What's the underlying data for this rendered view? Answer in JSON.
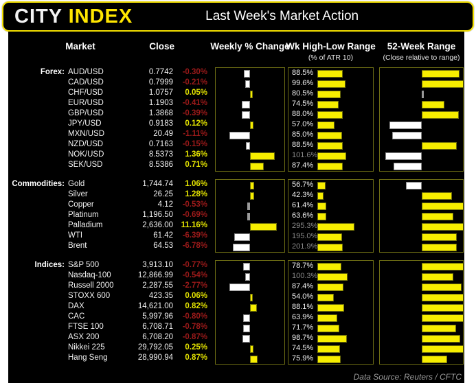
{
  "header": {
    "logo_city": "CITY",
    "logo_index": "INDEX",
    "title": "Last Week's Market Action"
  },
  "columns": {
    "market": "Market",
    "close": "Close",
    "weekly": "Weekly % Change",
    "hilow": "Wk High-Low Range",
    "hilow_sub": "(% of ATR 10)",
    "range52": "52-Week Range",
    "range52_sub": "(Close relative to range)"
  },
  "footer": {
    "source": "Data Source: Reuters / CFTC"
  },
  "colors": {
    "accent_yellow": "#ffe600",
    "positive_text": "#e6e600",
    "negative_text": "#9e1a1a",
    "over100_text": "#8a8a8a",
    "bar_yellow": "#f7ee00",
    "bar_white": "#ffffff",
    "panel_border": "#6d6d14",
    "tiny_bar_gray": "#9a9a9a"
  },
  "chart_data": {
    "type": "bar",
    "title": "Last Week's Market Action",
    "notes": "Three linked bar charts per row: weekly % change (diverging from 0, white=down yellow=up), week high-low range as % of ATR10 (yellow bars, labels >100% in gray), and close position within 52-week range (diverging from range midpoint, pos52 is -1..1 fraction).",
    "sections": [
      {
        "id": "forex",
        "name": "Forex:",
        "wk_axis": 2,
        "hl_axis": 200,
        "rows": [
          {
            "m": "AUD/USD",
            "close": "0.7742",
            "wk": -0.3,
            "wk_label": "-0.30%",
            "hl": 88.5,
            "hl_label": "88.5%",
            "pos52": 0.9
          },
          {
            "m": "CAD/USD",
            "close": "0.7999",
            "wk": -0.21,
            "wk_label": "-0.21%",
            "hl": 99.6,
            "hl_label": "99.6%",
            "pos52": 1.0
          },
          {
            "m": "CHF/USD",
            "close": "1.0757",
            "wk": 0.05,
            "wk_label": "0.05%",
            "hl": 80.5,
            "hl_label": "80.5%",
            "pos52": 0.02
          },
          {
            "m": "EUR/USD",
            "close": "1.1903",
            "wk": -0.41,
            "wk_label": "-0.41%",
            "hl": 74.5,
            "hl_label": "74.5%",
            "pos52": 0.53
          },
          {
            "m": "GBP/USD",
            "close": "1.3868",
            "wk": -0.39,
            "wk_label": "-0.39%",
            "hl": 88.0,
            "hl_label": "88.0%",
            "pos52": 0.89
          },
          {
            "m": "JPY/USD",
            "close": "0.9183",
            "wk": 0.12,
            "wk_label": "0.12%",
            "hl": 57.0,
            "hl_label": "57.0%",
            "pos52": -0.76
          },
          {
            "m": "MXN/USD",
            "close": "20.49",
            "wk": -1.11,
            "wk_label": "-1.11%",
            "hl": 85.0,
            "hl_label": "85.0%",
            "pos52": -0.69
          },
          {
            "m": "NZD/USD",
            "close": "0.7163",
            "wk": -0.15,
            "wk_label": "-0.15%",
            "hl": 88.5,
            "hl_label": "88.5%",
            "pos52": 0.84
          },
          {
            "m": "NOK/USD",
            "close": "8.5373",
            "wk": 1.36,
            "wk_label": "1.36%",
            "hl": 101.6,
            "hl_label": "101.6%",
            "pos52": -0.85
          },
          {
            "m": "SEK/USD",
            "close": "8.5386",
            "wk": 0.71,
            "wk_label": "0.71%",
            "hl": 87.4,
            "hl_label": "87.4%",
            "pos52": -0.65
          }
        ]
      },
      {
        "id": "commodities",
        "name": "Commodities:",
        "wk_axis": 15,
        "hl_axis": 450,
        "rows": [
          {
            "m": "Gold",
            "close": "1,744.74",
            "wk": 1.06,
            "wk_label": "1.06%",
            "hl": 56.7,
            "hl_label": "56.7%",
            "pos52": -0.35
          },
          {
            "m": "Silver",
            "close": "26.25",
            "wk": 1.28,
            "wk_label": "1.28%",
            "hl": 42.3,
            "hl_label": "42.3%",
            "pos52": 0.72
          },
          {
            "m": "Copper",
            "close": "4.12",
            "wk": -0.53,
            "wk_label": "-0.53%",
            "hl": 61.4,
            "hl_label": "61.4%",
            "pos52": 1.0
          },
          {
            "m": "Platinum",
            "close": "1,196.50",
            "wk": -0.69,
            "wk_label": "-0.69%",
            "hl": 63.6,
            "hl_label": "63.6%",
            "pos52": 0.76
          },
          {
            "m": "Palladium",
            "close": "2,636.00",
            "wk": 11.16,
            "wk_label": "11.16%",
            "hl": 295.3,
            "hl_label": "295.3%",
            "pos52": 1.0
          },
          {
            "m": "WTI",
            "close": "61.42",
            "wk": -6.39,
            "wk_label": "-6.39%",
            "hl": 195.0,
            "hl_label": "195.0%",
            "pos52": 0.84
          },
          {
            "m": "Brent",
            "close": "64.53",
            "wk": -6.78,
            "wk_label": "-6.78%",
            "hl": 201.9,
            "hl_label": "201.9%",
            "pos52": 0.84
          }
        ]
      },
      {
        "id": "indices",
        "name": "Indices:",
        "wk_axis": 5,
        "hl_axis": 190,
        "rows": [
          {
            "m": "S&P 500",
            "close": "3,913.10",
            "wk": -0.77,
            "wk_label": "-0.77%",
            "hl": 78.7,
            "hl_label": "78.7%",
            "pos52": 1.0
          },
          {
            "m": "Nasdaq-100",
            "close": "12,866.99",
            "wk": -0.54,
            "wk_label": "-0.54%",
            "hl": 100.3,
            "hl_label": "100.3%",
            "pos52": 0.76
          },
          {
            "m": "Russell 2000",
            "close": "2,287.55",
            "wk": -2.77,
            "wk_label": "-2.77%",
            "hl": 87.4,
            "hl_label": "87.4%",
            "pos52": 0.95
          },
          {
            "m": "STOXX 600",
            "close": "423.35",
            "wk": 0.06,
            "wk_label": "0.06%",
            "hl": 54.0,
            "hl_label": "54.0%",
            "pos52": 1.0
          },
          {
            "m": "DAX",
            "close": "14,621.00",
            "wk": 0.82,
            "wk_label": "0.82%",
            "hl": 88.1,
            "hl_label": "88.1%",
            "pos52": 1.0
          },
          {
            "m": "CAC",
            "close": "5,997.96",
            "wk": -0.8,
            "wk_label": "-0.80%",
            "hl": 63.9,
            "hl_label": "63.9%",
            "pos52": 1.0
          },
          {
            "m": "FTSE 100",
            "close": "6,708.71",
            "wk": -0.78,
            "wk_label": "-0.78%",
            "hl": 71.7,
            "hl_label": "71.7%",
            "pos52": 0.82
          },
          {
            "m": "ASX 200",
            "close": "6,708.20",
            "wk": -0.87,
            "wk_label": "-0.87%",
            "hl": 98.7,
            "hl_label": "98.7%",
            "pos52": 0.92
          },
          {
            "m": "Nikkei 225",
            "close": "29,792.05",
            "wk": 0.25,
            "wk_label": "0.25%",
            "hl": 74.5,
            "hl_label": "74.5%",
            "pos52": 1.0
          },
          {
            "m": "Hang Seng",
            "close": "28,990.94",
            "wk": 0.87,
            "wk_label": "0.87%",
            "hl": 75.9,
            "hl_label": "75.9%",
            "pos52": 0.61
          }
        ]
      }
    ]
  }
}
